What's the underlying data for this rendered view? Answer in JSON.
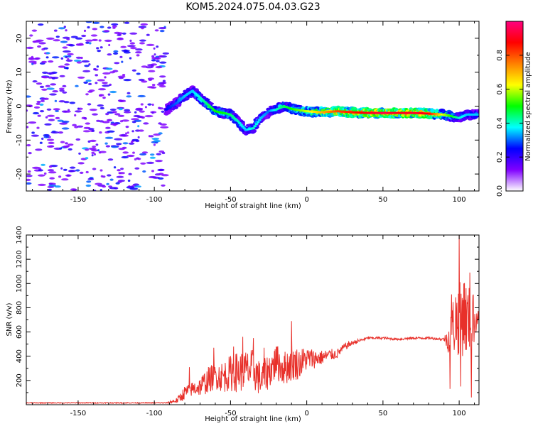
{
  "chart_data": [
    {
      "type": "heatmap",
      "title": "KOM5.2024.075.04.03.G23",
      "xlabel": "Height of straight line (km)",
      "ylabel": "Frequency (Hz)",
      "xlim": [
        -184,
        113
      ],
      "ylim": [
        -25,
        25
      ],
      "x_ticks": [
        -150,
        -100,
        -50,
        0,
        50,
        100
      ],
      "y_ticks": [
        -20,
        -10,
        0,
        10,
        20
      ],
      "noise_region_x": [
        -184,
        -92
      ],
      "ridge": {
        "x": [
          -92,
          -85,
          -80,
          -75,
          -70,
          -65,
          -60,
          -55,
          -50,
          -45,
          -40,
          -35,
          -30,
          -25,
          -20,
          -15,
          -10,
          -5,
          0,
          10,
          20,
          30,
          40,
          50,
          60,
          70,
          80,
          90,
          95,
          100,
          105,
          110,
          113
        ],
        "y": [
          -1,
          1,
          3,
          4.5,
          2.5,
          0.5,
          -1.5,
          -2,
          -2.5,
          -4.5,
          -7,
          -6.5,
          -3.5,
          -1.5,
          -1,
          0,
          -0.8,
          -1.2,
          -1.5,
          -1.8,
          -1.5,
          -1.8,
          -2,
          -2,
          -2,
          -2,
          -2.2,
          -2.5,
          -3,
          -3.5,
          -2.5,
          -2.5,
          -2.5
        ],
        "amplitude": [
          0.25,
          0.3,
          0.35,
          0.35,
          0.4,
          0.45,
          0.5,
          0.5,
          0.45,
          0.4,
          0.35,
          0.4,
          0.35,
          0.3,
          0.4,
          0.45,
          0.5,
          0.55,
          0.6,
          0.7,
          0.8,
          0.85,
          0.9,
          0.95,
          0.9,
          0.92,
          0.88,
          0.6,
          0.5,
          0.4,
          0.35,
          0.35,
          0.35
        ]
      },
      "colorbar": {
        "label": "Normalized spectral amplitude",
        "range": [
          0,
          1
        ],
        "ticks": [
          0.0,
          0.2,
          0.4,
          0.6,
          0.8
        ],
        "tick_labels": [
          "0.0",
          "0.2",
          "0.4",
          "0.6",
          "0.8"
        ],
        "colors": [
          "#ffffff",
          "#8000ff",
          "#0000ff",
          "#00ffff",
          "#00ff00",
          "#ffff00",
          "#ff8000",
          "#ff0000",
          "#ff0080"
        ]
      }
    },
    {
      "type": "line",
      "xlabel": "Height of straight line (km)",
      "ylabel": "SNR (v/v)",
      "xlim": [
        -184,
        113
      ],
      "ylim": [
        0,
        1400
      ],
      "x_ticks": [
        -150,
        -100,
        -50,
        0,
        50,
        100
      ],
      "y_ticks": [
        200,
        400,
        600,
        800,
        1000,
        1200,
        1400
      ],
      "color": "#e8302a",
      "envelope": {
        "x": [
          -184,
          -100,
          -92,
          -85,
          -80,
          -75,
          -70,
          -65,
          -60,
          -55,
          -50,
          -45,
          -40,
          -35,
          -30,
          -25,
          -20,
          -15,
          -10,
          -5,
          0,
          5,
          10,
          15,
          20,
          25,
          30,
          35,
          40,
          50,
          60,
          70,
          80,
          85,
          90,
          93,
          95,
          97,
          100,
          103,
          105,
          107,
          110,
          113
        ],
        "y": [
          15,
          15,
          15,
          35,
          100,
          130,
          150,
          200,
          240,
          230,
          260,
          270,
          280,
          290,
          200,
          280,
          350,
          300,
          340,
          340,
          380,
          380,
          390,
          410,
          420,
          480,
          510,
          530,
          550,
          550,
          540,
          550,
          550,
          545,
          540,
          540,
          600,
          700,
          700,
          750,
          700,
          680,
          710,
          730
        ],
        "jitter": [
          4,
          4,
          6,
          25,
          60,
          60,
          80,
          110,
          110,
          130,
          150,
          170,
          170,
          170,
          140,
          150,
          150,
          140,
          150,
          130,
          100,
          80,
          60,
          50,
          40,
          30,
          20,
          15,
          10,
          10,
          10,
          10,
          10,
          10,
          15,
          120,
          200,
          300,
          300,
          350,
          300,
          300,
          200,
          20
        ]
      },
      "peaks": [
        {
          "x": -77,
          "y": 310
        },
        {
          "x": -61,
          "y": 470
        },
        {
          "x": -48,
          "y": 480
        },
        {
          "x": -42,
          "y": 560
        },
        {
          "x": -35,
          "y": 550
        },
        {
          "x": -28,
          "y": 470
        },
        {
          "x": -20,
          "y": 480
        },
        {
          "x": -10,
          "y": 690
        },
        {
          "x": 95,
          "y": 910
        },
        {
          "x": 100,
          "y": 1400
        },
        {
          "x": 103,
          "y": 1000
        },
        {
          "x": 107,
          "y": 1090
        },
        {
          "x": 109,
          "y": 900
        }
      ],
      "troughs": [
        {
          "x": 94,
          "y": 130
        },
        {
          "x": 101,
          "y": 150
        },
        {
          "x": 108,
          "y": 60
        }
      ]
    }
  ]
}
